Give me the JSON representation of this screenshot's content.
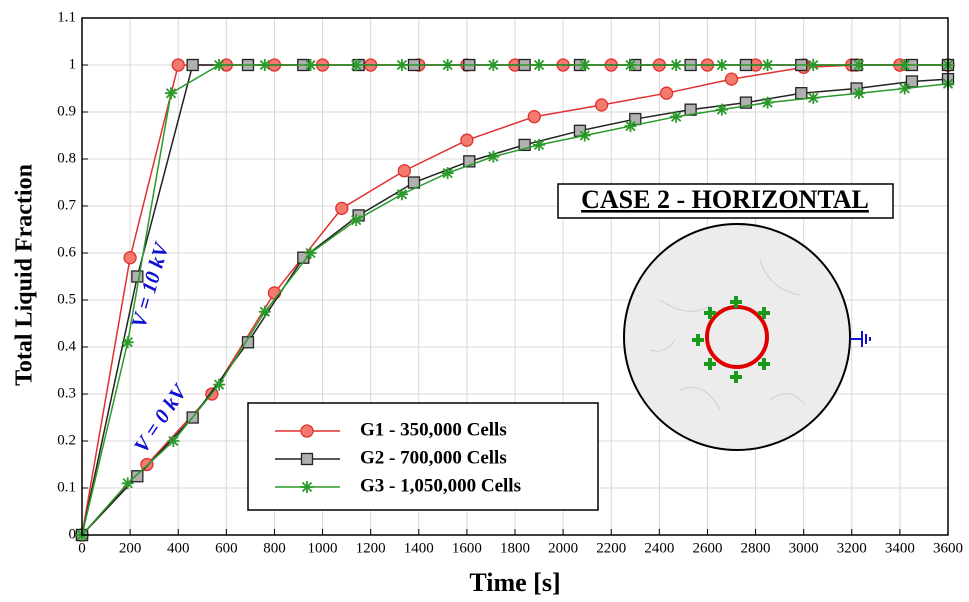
{
  "chart_data": {
    "type": "line",
    "xlabel": "Time [s]",
    "ylabel": "Total Liquid Fraction",
    "xlim": [
      0,
      3600
    ],
    "xticks": [
      0,
      200,
      400,
      600,
      800,
      1000,
      1200,
      1400,
      1600,
      1800,
      2000,
      2200,
      2400,
      2600,
      2800,
      3000,
      3200,
      3400,
      3600
    ],
    "ylim": [
      0,
      1.1
    ],
    "yticks": [
      0,
      0.1,
      0.2,
      0.3,
      0.4,
      0.5,
      0.6,
      0.7,
      0.8,
      0.9,
      1,
      1.1
    ],
    "grid": true,
    "annotations": [
      "CASE 2 - HORIZONTAL",
      "V = 10 kV",
      "V = 0 kV"
    ],
    "series": [
      {
        "name": "G1 - 350,000 Cells",
        "color": "#e03030",
        "marker": "circle",
        "curves": [
          {
            "x": [
              0,
              200,
              400,
              600,
              800,
              1000,
              1200,
              1400,
              1600,
              1800,
              2000,
              2200,
              2400,
              2600,
              2800,
              3000,
              3200,
              3400,
              3600
            ],
            "values": [
              0,
              0.59,
              1,
              1,
              1,
              1,
              1,
              1,
              1,
              1,
              1,
              1,
              1,
              1,
              1,
              1,
              1,
              1,
              1
            ]
          },
          {
            "x": [
              0,
              270,
              540,
              800,
              1080,
              1340,
              1600,
              1880,
              2160,
              2430,
              2700,
              3000,
              3220,
              3400,
              3600
            ],
            "values": [
              0,
              0.15,
              0.3,
              0.515,
              0.695,
              0.775,
              0.84,
              0.89,
              0.915,
              0.94,
              0.97,
              0.995,
              1,
              1,
              1
            ]
          }
        ]
      },
      {
        "name": "G2 - 700,000 Cells",
        "color": "#222222",
        "marker": "square",
        "curves": [
          {
            "x": [
              0,
              230,
              460,
              690,
              920,
              1150,
              1380,
              1610,
              1840,
              2070,
              2300,
              2530,
              2760,
              2990,
              3220,
              3450,
              3600
            ],
            "values": [
              0,
              0.55,
              1,
              1,
              1,
              1,
              1,
              1,
              1,
              1,
              1,
              1,
              1,
              1,
              1,
              1,
              1
            ]
          },
          {
            "x": [
              0,
              230,
              460,
              690,
              920,
              1150,
              1380,
              1610,
              1840,
              2070,
              2300,
              2530,
              2760,
              2990,
              3220,
              3450,
              3600
            ],
            "values": [
              0,
              0.125,
              0.25,
              0.41,
              0.59,
              0.68,
              0.75,
              0.795,
              0.83,
              0.86,
              0.885,
              0.905,
              0.92,
              0.94,
              0.95,
              0.965,
              0.97
            ]
          }
        ]
      },
      {
        "name": "G3 - 1,050,000 Cells",
        "color": "#2a9a2a",
        "marker": "star",
        "curves": [
          {
            "x": [
              0,
              190,
              370,
              570,
              760,
              950,
              1140,
              1330,
              1520,
              1710,
              1900,
              2090,
              2280,
              2470,
              2660,
              2850,
              3040,
              3230,
              3420,
              3600
            ],
            "values": [
              0,
              0.41,
              0.94,
              1,
              1,
              1,
              1,
              1,
              1,
              1,
              1,
              1,
              1,
              1,
              1,
              1,
              1,
              1,
              1,
              1
            ]
          },
          {
            "x": [
              0,
              190,
              380,
              570,
              760,
              950,
              1140,
              1330,
              1520,
              1710,
              1900,
              2090,
              2280,
              2470,
              2660,
              2850,
              3040,
              3230,
              3420,
              3600
            ],
            "values": [
              0,
              0.11,
              0.2,
              0.32,
              0.475,
              0.6,
              0.67,
              0.725,
              0.77,
              0.805,
              0.83,
              0.85,
              0.87,
              0.89,
              0.905,
              0.92,
              0.93,
              0.94,
              0.95,
              0.96
            ]
          }
        ]
      }
    ]
  }
}
